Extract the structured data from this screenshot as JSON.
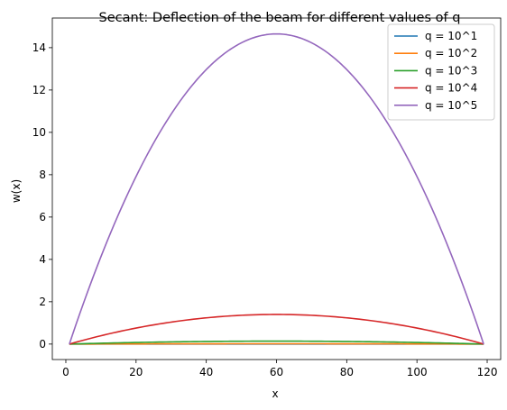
{
  "chart_data": {
    "type": "line",
    "title": "Secant: Deflection of the beam for different values of q",
    "xlabel": "x",
    "ylabel": "w(x)",
    "xlim": [
      -3.85,
      123.85
    ],
    "ylim": [
      -0.73,
      15.4
    ],
    "xticks": [
      0,
      20,
      40,
      60,
      80,
      100,
      120
    ],
    "yticks": [
      0,
      2,
      4,
      6,
      8,
      10,
      12,
      14
    ],
    "grid": false,
    "legend_position": "top-right",
    "x_domain": [
      1,
      119
    ],
    "series": [
      {
        "name": "q = 10^1",
        "color": "#1f77b4",
        "shape": "parabola",
        "peak": {
          "x": 60,
          "y": 0.0015
        },
        "x_range": [
          1,
          119
        ]
      },
      {
        "name": "q = 10^2",
        "color": "#ff7f0e",
        "shape": "parabola",
        "peak": {
          "x": 60,
          "y": 0.015
        },
        "x_range": [
          1,
          119
        ]
      },
      {
        "name": "q = 10^3",
        "color": "#2ca02c",
        "shape": "parabola",
        "peak": {
          "x": 60,
          "y": 0.14
        },
        "x_range": [
          1,
          119
        ]
      },
      {
        "name": "q = 10^4",
        "color": "#d62728",
        "shape": "parabola",
        "peak": {
          "x": 60,
          "y": 1.4
        },
        "x_range": [
          1,
          119
        ]
      },
      {
        "name": "q = 10^5",
        "color": "#9467bd",
        "shape": "parabola",
        "peak": {
          "x": 60,
          "y": 14.65
        },
        "x_range": [
          1,
          119
        ]
      }
    ]
  }
}
